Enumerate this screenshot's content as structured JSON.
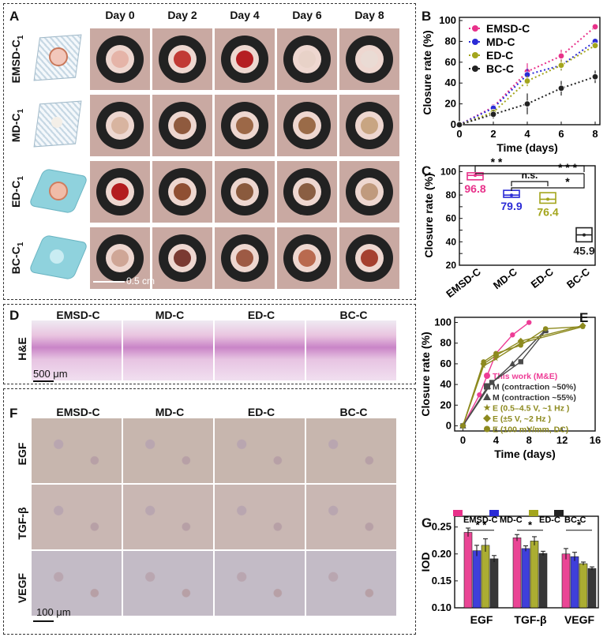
{
  "panels": {
    "A": "A",
    "B": "B",
    "C": "C",
    "D": "D",
    "E": "E",
    "F": "F",
    "G": "G"
  },
  "panelA": {
    "days": [
      "Day 0",
      "Day 2",
      "Day 4",
      "Day 6",
      "Day 8"
    ],
    "rows": [
      {
        "label": "EMSD-C1",
        "base": "EMSD-C",
        "sub": "1"
      },
      {
        "label": "MD-C1",
        "base": "MD-C",
        "sub": "1"
      },
      {
        "label": "ED-C1",
        "base": "ED-C",
        "sub": "1"
      },
      {
        "label": "BC-C1",
        "base": "BC-C",
        "sub": "1"
      }
    ],
    "scale": "0.5 cm"
  },
  "panelD": {
    "columns": [
      "EMSD-C",
      "MD-C",
      "ED-C",
      "BC-C"
    ],
    "row": "H&E",
    "scale": "500 μm"
  },
  "panelF": {
    "columns": [
      "EMSD-C",
      "MD-C",
      "ED-C",
      "BC-C"
    ],
    "rows": [
      "EGF",
      "TGF-β",
      "VEGF"
    ],
    "scale": "100 μm"
  },
  "colors": {
    "emsd": "#e8318a",
    "md": "#2b2bd6",
    "ed": "#a3a51c",
    "bc": "#222222"
  },
  "chart_data": [
    {
      "id": "B",
      "type": "line",
      "xlabel": "Time (days)",
      "ylabel": "Closure rate (%)",
      "x": [
        0,
        2,
        4,
        6,
        8
      ],
      "xlim": [
        0,
        8
      ],
      "ylim": [
        0,
        100
      ],
      "xticks": [
        "0",
        "2",
        "4",
        "6",
        "8"
      ],
      "yticks": [
        "0",
        "20",
        "40",
        "60",
        "80",
        "100"
      ],
      "legend": "top-left",
      "series": [
        {
          "name": "EMSD-C",
          "values": [
            0,
            17,
            51,
            66,
            94
          ],
          "err": [
            2,
            3,
            8,
            6,
            2
          ]
        },
        {
          "name": "MD-C",
          "values": [
            0,
            16,
            48,
            57,
            80
          ],
          "err": [
            2,
            3,
            6,
            5,
            3
          ]
        },
        {
          "name": "ED-C",
          "values": [
            0,
            12,
            42,
            57,
            76
          ],
          "err": [
            2,
            3,
            5,
            5,
            3
          ]
        },
        {
          "name": "BC-C",
          "values": [
            0,
            10,
            20,
            35,
            46
          ],
          "err": [
            2,
            4,
            10,
            7,
            6
          ]
        }
      ]
    },
    {
      "id": "C",
      "type": "box",
      "ylabel": "Closure rate (%)",
      "ylim": [
        20,
        105
      ],
      "yticks": [
        "20",
        "30",
        "40",
        "50",
        "60",
        "70",
        "80",
        "90",
        "100"
      ],
      "categories": [
        "EMSD-C",
        "MD-C",
        "ED-C",
        "BC-C"
      ],
      "values": [
        96.8,
        79.9,
        76.4,
        45.9
      ],
      "value_labels": [
        "96.8",
        "79.9",
        "76.4",
        "45.9"
      ],
      "box_low": [
        93,
        78,
        73,
        40
      ],
      "box_high": [
        99,
        84,
        82,
        52
      ],
      "significance": [
        {
          "from": "EMSD-C",
          "to": "BC-C",
          "label": "* *"
        },
        {
          "from": "MD-C",
          "to": "ED-C",
          "label": "n.s."
        },
        {
          "from": "EMSD-C",
          "to": "BC-C",
          "label": "* * *"
        },
        {
          "from": "MD-C",
          "to": "BC-C",
          "label": "*"
        }
      ]
    },
    {
      "id": "E",
      "type": "line",
      "xlabel": "Time (days)",
      "ylabel": "Closure rate (%)",
      "xlim": [
        -1,
        16
      ],
      "ylim": [
        -5,
        105
      ],
      "xticks": [
        "0",
        "4",
        "8",
        "12",
        "16"
      ],
      "yticks": [
        "0",
        "20",
        "40",
        "60",
        "80",
        "100"
      ],
      "series": [
        {
          "name": "This work (M&E)",
          "x": [
            0,
            2,
            4,
            6,
            8
          ],
          "values": [
            0,
            30,
            70,
            88,
            100
          ],
          "color": "#ee3c96",
          "marker": "circle"
        },
        {
          "name": "M (contraction ~50%)",
          "x": [
            0,
            3.5,
            7,
            10
          ],
          "values": [
            0,
            42,
            62,
            92
          ],
          "color": "#4a4a4a",
          "marker": "square"
        },
        {
          "name": "M (contraction ~55%)",
          "x": [
            0,
            3,
            6,
            10
          ],
          "values": [
            0,
            38,
            60,
            93
          ],
          "color": "#4a4a4a",
          "marker": "triangle"
        },
        {
          "name": "E (0.5–4.5 V, ~1 Hz )",
          "x": [
            0,
            2.5,
            4,
            7,
            14.5
          ],
          "values": [
            0,
            58,
            65,
            80,
            96
          ],
          "color": "#8d8a1f",
          "marker": "star"
        },
        {
          "name": "E (±5 V, ~2 Hz )",
          "x": [
            0,
            2.5,
            4,
            7,
            14.5
          ],
          "values": [
            0,
            60,
            68,
            82,
            97
          ],
          "color": "#8d8a1f",
          "marker": "diamond"
        },
        {
          "name": "E (100 mV/mm, DC)",
          "x": [
            0,
            2.5,
            4,
            7,
            10,
            14.5
          ],
          "values": [
            0,
            62,
            70,
            78,
            94,
            96
          ],
          "color": "#8d8a1f",
          "marker": "circle"
        }
      ]
    },
    {
      "id": "G",
      "type": "bar",
      "ylabel": "IOD",
      "ylim": [
        0.1,
        0.27
      ],
      "yticks": [
        "0.10",
        "0.15",
        "0.20",
        "0.25"
      ],
      "categories": [
        "EGF",
        "TGF-β",
        "VEGF"
      ],
      "series": [
        {
          "name": "EMSD-C",
          "values": [
            0.24,
            0.23,
            0.2
          ],
          "err": [
            0.008,
            0.006,
            0.01
          ]
        },
        {
          "name": "MD-C",
          "values": [
            0.206,
            0.21,
            0.195
          ],
          "err": [
            0.01,
            0.005,
            0.008
          ]
        },
        {
          "name": "ED-C",
          "values": [
            0.216,
            0.224,
            0.182
          ],
          "err": [
            0.012,
            0.008,
            0.003
          ]
        },
        {
          "name": "BC-C",
          "values": [
            0.191,
            0.201,
            0.173
          ],
          "err": [
            0.006,
            0.004,
            0.003
          ]
        }
      ],
      "significance": [
        {
          "category": "EGF",
          "label": "* *"
        },
        {
          "category": "TGF-β",
          "label": "*"
        },
        {
          "category": "VEGF",
          "label": "*"
        }
      ]
    }
  ]
}
